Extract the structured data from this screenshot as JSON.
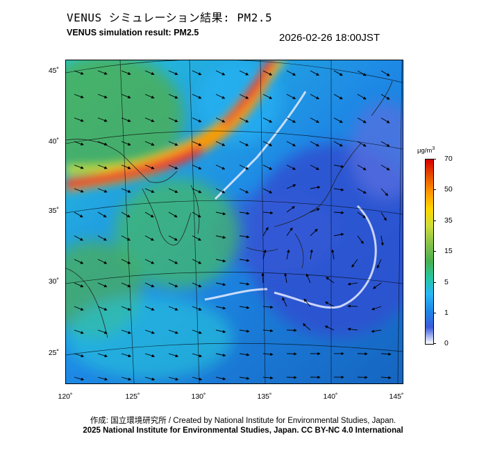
{
  "header": {
    "title_jp": "VENUS シミュレーション結果: PM2.5",
    "title_en": "VENUS simulation result: PM2.5",
    "timestamp": "2026-02-26 18:00JST"
  },
  "map": {
    "lat_ticks": [
      "45˚",
      "40˚",
      "35˚",
      "30˚",
      "25˚"
    ],
    "lon_ticks": [
      "120˚",
      "125˚",
      "130˚",
      "135˚",
      "140˚",
      "145˚"
    ]
  },
  "colorbar": {
    "unit": "μg/m",
    "unit_sup": "3",
    "labels": [
      "70",
      "50",
      "35",
      "15",
      "5",
      "1",
      "0"
    ],
    "colors": [
      "#ffffff",
      "#3b5bdb",
      "#1e88e5",
      "#29b6f6",
      "#26c6a0",
      "#4caf50",
      "#8bc34a",
      "#cddc39",
      "#ffd600",
      "#ff9800",
      "#e65100",
      "#d50000"
    ]
  },
  "footer": {
    "credit_jp": "作成: 国立環境研究所 / Created by National Institute for Environmental Studies, Japan.",
    "credit_en": "2025 National Institute for Environmental Studies, Japan. CC BY-NC 4.0 International"
  }
}
